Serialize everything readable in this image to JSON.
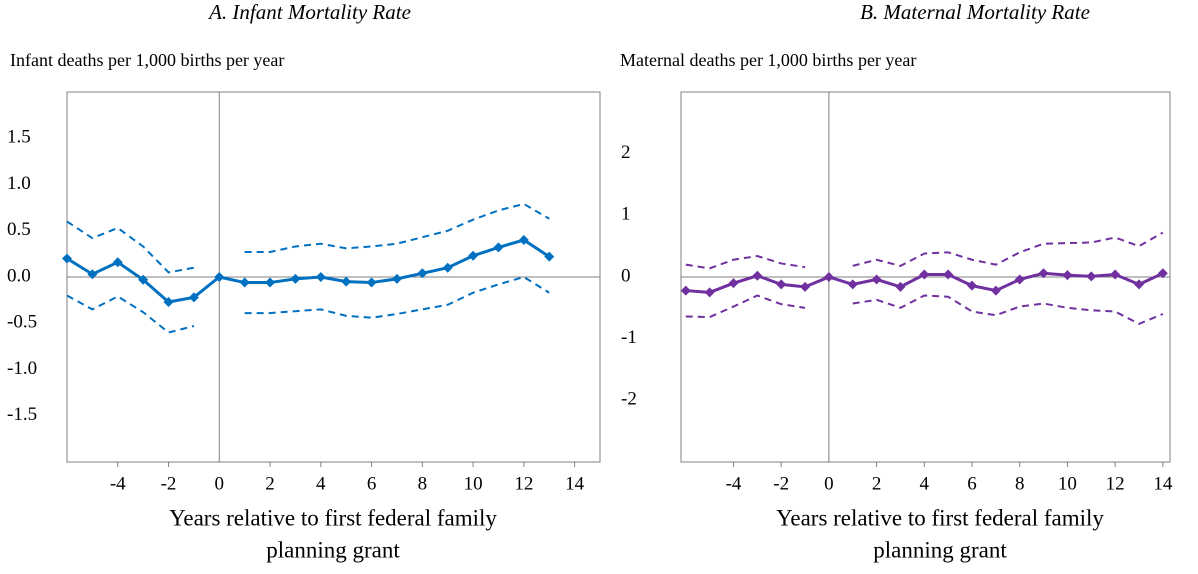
{
  "chart_data": [
    {
      "type": "line",
      "title": "A. Infant Mortality Rate",
      "ylabel": "Infant deaths per 1,000 births per year",
      "xlabel": [
        "Years relative to first federal family",
        "planning grant"
      ],
      "x": [
        -6,
        -5,
        -4,
        -3,
        -2,
        -1,
        0,
        1,
        2,
        3,
        4,
        5,
        6,
        7,
        8,
        9,
        10,
        11,
        12,
        13
      ],
      "series": [
        {
          "color": "#0070c0",
          "style": "solid",
          "markers": true,
          "values": [
            0.2,
            0.03,
            0.16,
            -0.03,
            -0.27,
            -0.22,
            0.0,
            -0.06,
            -0.06,
            -0.02,
            0.0,
            -0.05,
            -0.06,
            -0.02,
            0.04,
            0.1,
            0.23,
            0.32,
            0.4,
            0.22
          ]
        },
        {
          "color": "#0070c0",
          "style": "dashed",
          "markers": false,
          "values": [
            0.6,
            0.42,
            0.53,
            0.33,
            0.05,
            0.1,
            null,
            0.27,
            0.27,
            0.33,
            0.36,
            0.31,
            0.33,
            0.36,
            0.43,
            0.5,
            0.62,
            0.72,
            0.79,
            0.63
          ]
        },
        {
          "color": "#0070c0",
          "style": "dashed",
          "markers": false,
          "values": [
            -0.2,
            -0.35,
            -0.21,
            -0.38,
            -0.6,
            -0.53,
            null,
            -0.39,
            -0.39,
            -0.37,
            -0.35,
            -0.42,
            -0.44,
            -0.4,
            -0.35,
            -0.3,
            -0.17,
            -0.08,
            0.0,
            -0.17
          ]
        }
      ],
      "xlim": [
        -6,
        15
      ],
      "xticks": [
        -4,
        -2,
        0,
        2,
        4,
        6,
        8,
        10,
        12,
        14
      ],
      "ylim": [
        -2,
        2
      ],
      "yticks": [
        {
          "value": -1.5,
          "label": "-1.5"
        },
        {
          "value": -1,
          "label": "-1.0"
        },
        {
          "value": -0.5,
          "label": "-0.5"
        },
        {
          "value": 0,
          "label": "0.0"
        },
        {
          "value": 0.5,
          "label": "0.5"
        },
        {
          "value": 1,
          "label": "1.0"
        },
        {
          "value": 1.5,
          "label": "1.5"
        }
      ]
    },
    {
      "type": "line",
      "title": "B. Maternal Mortality Rate",
      "ylabel": "Maternal deaths per 1,000 births per year",
      "xlabel": [
        "Years relative to first federal family",
        "planning grant"
      ],
      "x": [
        -6,
        -5,
        -4,
        -3,
        -2,
        -1,
        0,
        1,
        2,
        3,
        4,
        5,
        6,
        7,
        8,
        9,
        10,
        11,
        12,
        13,
        14
      ],
      "series": [
        {
          "color": "#7030a0",
          "style": "solid",
          "markers": true,
          "values": [
            -0.22,
            -0.25,
            -0.1,
            0.02,
            -0.12,
            -0.16,
            0.0,
            -0.12,
            -0.04,
            -0.16,
            0.04,
            0.04,
            -0.14,
            -0.22,
            -0.04,
            0.06,
            0.03,
            0.01,
            0.04,
            -0.12,
            0.06
          ]
        },
        {
          "color": "#7030a0",
          "style": "dashed",
          "markers": false,
          "values": [
            0.2,
            0.14,
            0.28,
            0.34,
            0.22,
            0.16,
            null,
            0.18,
            0.28,
            0.18,
            0.38,
            0.4,
            0.28,
            0.2,
            0.4,
            0.54,
            0.55,
            0.56,
            0.64,
            0.5,
            0.72
          ]
        },
        {
          "color": "#7030a0",
          "style": "dashed",
          "markers": false,
          "values": [
            -0.64,
            -0.65,
            -0.48,
            -0.3,
            -0.44,
            -0.5,
            null,
            -0.43,
            -0.37,
            -0.5,
            -0.3,
            -0.32,
            -0.56,
            -0.62,
            -0.48,
            -0.43,
            -0.5,
            -0.54,
            -0.56,
            -0.76,
            -0.6
          ]
        }
      ],
      "xlim": [
        -6.2,
        14.3
      ],
      "xticks": [
        -4,
        -2,
        0,
        2,
        4,
        6,
        8,
        10,
        12,
        14
      ],
      "ylim": [
        -3,
        3
      ],
      "yticks": [
        -2,
        -1,
        0,
        1,
        2
      ]
    }
  ]
}
